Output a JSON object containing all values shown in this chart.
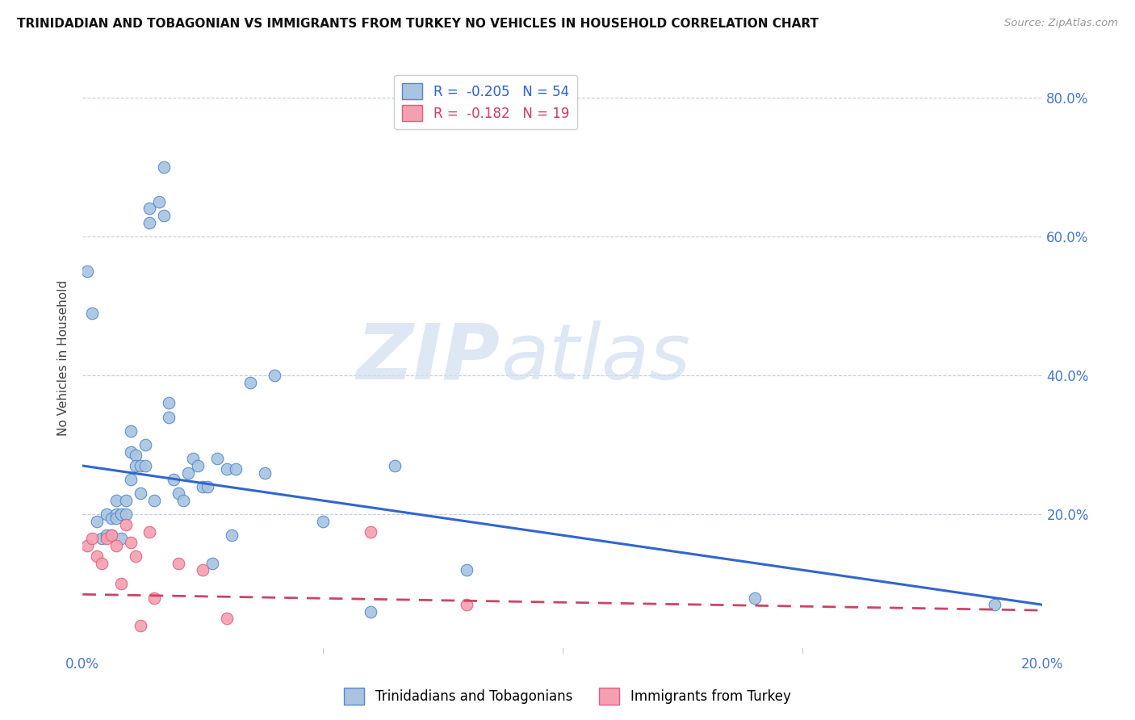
{
  "title": "TRINIDADIAN AND TOBAGONIAN VS IMMIGRANTS FROM TURKEY NO VEHICLES IN HOUSEHOLD CORRELATION CHART",
  "source": "Source: ZipAtlas.com",
  "ylabel": "No Vehicles in Household",
  "watermark_zip": "ZIP",
  "watermark_atlas": "atlas",
  "legend_blue": {
    "R": -0.205,
    "N": 54,
    "label": "Trinidadians and Tobagonians"
  },
  "legend_pink": {
    "R": -0.182,
    "N": 19,
    "label": "Immigrants from Turkey"
  },
  "xlim": [
    0.0,
    0.2
  ],
  "ylim": [
    0.0,
    0.85
  ],
  "xticks": [
    0.0,
    0.05,
    0.1,
    0.15,
    0.2
  ],
  "yticks": [
    0.0,
    0.2,
    0.4,
    0.6,
    0.8
  ],
  "ytick_labels_right": [
    "",
    "20.0%",
    "40.0%",
    "60.0%",
    "80.0%"
  ],
  "blue_scatter_x": [
    0.001,
    0.002,
    0.003,
    0.004,
    0.005,
    0.005,
    0.006,
    0.006,
    0.007,
    0.007,
    0.007,
    0.008,
    0.008,
    0.009,
    0.009,
    0.01,
    0.01,
    0.01,
    0.011,
    0.011,
    0.012,
    0.012,
    0.013,
    0.013,
    0.014,
    0.014,
    0.015,
    0.016,
    0.017,
    0.017,
    0.018,
    0.018,
    0.019,
    0.02,
    0.021,
    0.022,
    0.023,
    0.024,
    0.025,
    0.026,
    0.027,
    0.028,
    0.03,
    0.031,
    0.032,
    0.035,
    0.038,
    0.04,
    0.05,
    0.06,
    0.065,
    0.08,
    0.14,
    0.19
  ],
  "blue_scatter_y": [
    0.55,
    0.49,
    0.19,
    0.165,
    0.2,
    0.17,
    0.195,
    0.17,
    0.2,
    0.22,
    0.195,
    0.2,
    0.165,
    0.22,
    0.2,
    0.32,
    0.29,
    0.25,
    0.285,
    0.27,
    0.27,
    0.23,
    0.3,
    0.27,
    0.62,
    0.64,
    0.22,
    0.65,
    0.63,
    0.7,
    0.34,
    0.36,
    0.25,
    0.23,
    0.22,
    0.26,
    0.28,
    0.27,
    0.24,
    0.24,
    0.13,
    0.28,
    0.265,
    0.17,
    0.265,
    0.39,
    0.26,
    0.4,
    0.19,
    0.06,
    0.27,
    0.12,
    0.08,
    0.07
  ],
  "pink_scatter_x": [
    0.001,
    0.002,
    0.003,
    0.004,
    0.005,
    0.006,
    0.007,
    0.008,
    0.009,
    0.01,
    0.011,
    0.012,
    0.014,
    0.015,
    0.02,
    0.025,
    0.03,
    0.06,
    0.08
  ],
  "pink_scatter_y": [
    0.155,
    0.165,
    0.14,
    0.13,
    0.165,
    0.17,
    0.155,
    0.1,
    0.185,
    0.16,
    0.14,
    0.04,
    0.175,
    0.08,
    0.13,
    0.12,
    0.05,
    0.175,
    0.07
  ],
  "blue_line_x0": 0.0,
  "blue_line_x1": 0.2,
  "blue_line_y0": 0.27,
  "blue_line_y1": 0.07,
  "pink_line_x0": 0.0,
  "pink_line_x1": 0.2,
  "pink_line_y0": 0.085,
  "pink_line_y1": 0.062,
  "blue_scatter_color": "#a8c4e0",
  "blue_edge_color": "#5588cc",
  "pink_scatter_color": "#f4a0b0",
  "pink_edge_color": "#e06080",
  "blue_line_color": "#3366cc",
  "pink_line_color": "#cc4466",
  "grid_color": "#c0cfe0",
  "background_color": "#ffffff",
  "title_color": "#111111",
  "axis_tick_color": "#4477cc",
  "ylabel_color": "#444444"
}
